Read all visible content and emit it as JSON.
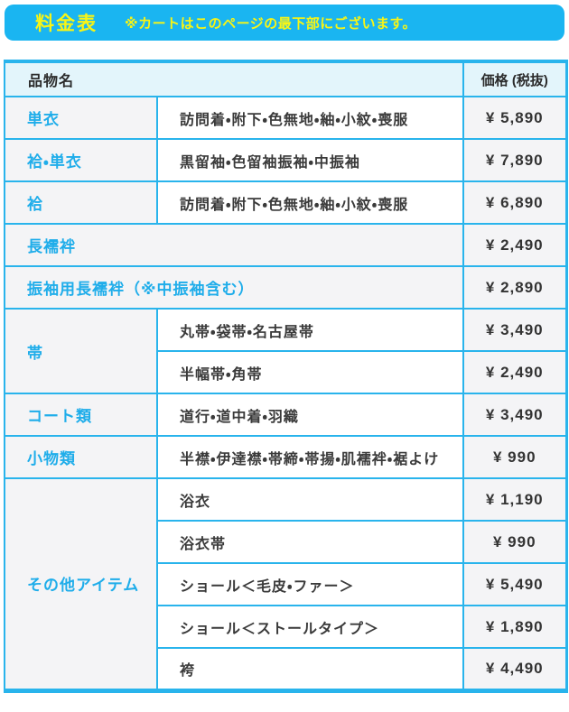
{
  "banner": {
    "title": "料金表",
    "note": "※カートはこのページの最下部にございます。"
  },
  "colors": {
    "banner_bg": "#1ab5f1",
    "banner_text": "#f8f515",
    "table_border": "#29b4ec",
    "header_row_bg": "#e3f5fb",
    "item_name_text": "#1fadea",
    "gray_cell_bg": "#f4f4f6",
    "detail_text": "#3a3a3a"
  },
  "table": {
    "columns": {
      "item": "品物名",
      "price": "価格 (税抜)"
    },
    "rows": [
      {
        "name": "単衣",
        "detail": "訪問着・附下・色無地・紬・小紋・喪服",
        "price": "¥ 5,890"
      },
      {
        "name": "袷・単衣",
        "detail": "黒留袖・色留袖振袖・中振袖",
        "price": "¥ 7,890"
      },
      {
        "name": "袷",
        "detail": "訪問着・附下・色無地・紬・小紋・喪服",
        "price": "¥ 6,890"
      },
      {
        "name": "長襦袢",
        "full_width": true,
        "price": "¥ 2,490"
      },
      {
        "name": "振袖用長襦袢（※中振袖含む）",
        "full_width": true,
        "price": "¥ 2,890"
      },
      {
        "name": "帯",
        "name_rowspan": 2,
        "detail": "丸帯・袋帯・名古屋帯",
        "price": "¥ 3,490"
      },
      {
        "detail": "半幅帯・角帯",
        "price": "¥ 2,490"
      },
      {
        "name": "コート類",
        "detail": "道行・道中着・羽織",
        "price": "¥ 3,490"
      },
      {
        "name": "小物類",
        "detail": "半襟・伊達襟・帯締・帯揚・肌襦袢・裾よけ",
        "price": "¥ 990"
      },
      {
        "name": "その他アイテム",
        "name_rowspan": 5,
        "detail": "浴衣",
        "price": "¥ 1,190"
      },
      {
        "detail": "浴衣帯",
        "price": "¥ 990"
      },
      {
        "detail": "ショール＜毛皮・ファー＞",
        "price": "¥ 5,490"
      },
      {
        "detail": "ショール＜ストールタイプ＞",
        "price": "¥ 1,890"
      },
      {
        "detail": "袴",
        "price": "¥ 4,490"
      }
    ]
  }
}
